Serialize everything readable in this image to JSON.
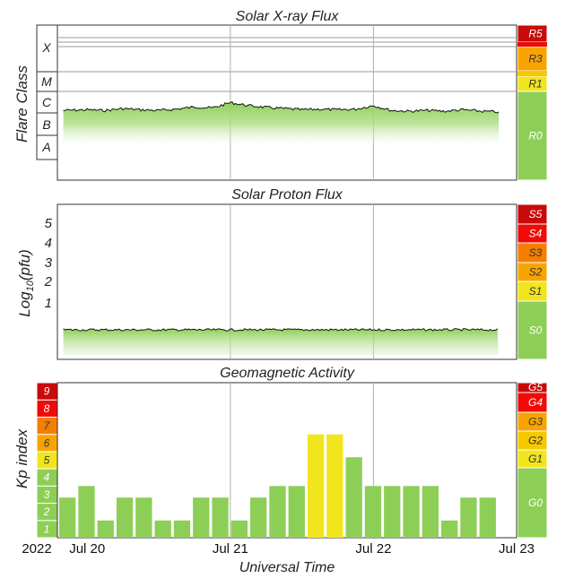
{
  "chart_data": [
    {
      "type": "area",
      "title": "Solar X-ray Flux",
      "ylabel": "Flare Class",
      "y_scale": "log",
      "class_labels": [
        "X",
        "M",
        "C",
        "B",
        "A"
      ],
      "x_ticks": [
        "Jul 20",
        "Jul 21",
        "Jul 22",
        "Jul 23"
      ],
      "x_range": [
        "2022-07-19T19:00",
        "2022-07-23T00:00"
      ],
      "level_scale": [
        "R5",
        "R3",
        "R1",
        "R0"
      ],
      "current_level": "R0",
      "series": [
        {
          "x": [
            "2022-07-19T20:00",
            "2022-07-20T00:00",
            "2022-07-20T03:00",
            "2022-07-20T06:00",
            "2022-07-20T09:00",
            "2022-07-20T12:00",
            "2022-07-20T15:00",
            "2022-07-20T18:00",
            "2022-07-20T21:00",
            "2022-07-21T00:00",
            "2022-07-21T03:00",
            "2022-07-21T06:00",
            "2022-07-21T09:00",
            "2022-07-21T12:00",
            "2022-07-21T15:00",
            "2022-07-21T18:00",
            "2022-07-21T21:00",
            "2022-07-22T00:00",
            "2022-07-22T03:00",
            "2022-07-22T06:00",
            "2022-07-22T09:00",
            "2022-07-22T12:00",
            "2022-07-22T15:00",
            "2022-07-22T18:00",
            "2022-07-22T21:00"
          ],
          "values": [
            "C1.3",
            "C1.4",
            "C1.3",
            "C1.6",
            "C1.4",
            "C1.3",
            "C1.5",
            "C1.9",
            "C1.7",
            "C3.0",
            "C2.2",
            "C1.8",
            "C1.6",
            "C1.4",
            "C1.5",
            "C1.4",
            "C1.5",
            "C2.2",
            "C1.3",
            "C1.2",
            "C1.3",
            "C1.2",
            "C1.4",
            "C1.2",
            "C1.1"
          ]
        }
      ]
    },
    {
      "type": "area",
      "title": "Solar Proton Flux",
      "ylabel": "Log10(pfu)",
      "ylabel_parts": {
        "pre": "Log",
        "sub": "10",
        "post": "(pfu)"
      },
      "y_ticks": [
        "1",
        "2",
        "3",
        "4",
        "5"
      ],
      "x_ticks": [
        "Jul 20",
        "Jul 21",
        "Jul 22",
        "Jul 23"
      ],
      "level_scale": [
        "S5",
        "S4",
        "S3",
        "S2",
        "S1",
        "S0"
      ],
      "current_level": "S0",
      "series": [
        {
          "x": [
            "2022-07-19T20:00",
            "2022-07-20T12:00",
            "2022-07-21T12:00",
            "2022-07-22T12:00",
            "2022-07-22T21:00"
          ],
          "values": [
            -0.6,
            -0.6,
            -0.6,
            -0.6,
            -0.6
          ]
        }
      ]
    },
    {
      "type": "bar",
      "title": "Geomagnetic Activity",
      "ylabel": "Kp index",
      "y_ticks": [
        "1",
        "2",
        "3",
        "4",
        "5",
        "6",
        "7",
        "8",
        "9"
      ],
      "ylim": [
        0,
        9
      ],
      "x_ticks": [
        "Jul 20",
        "Jul 21",
        "Jul 22",
        "Jul 23"
      ],
      "level_scale": [
        "G5",
        "G4",
        "G3",
        "G2",
        "G1",
        "G0"
      ],
      "current_level": "G0",
      "series": [
        {
          "name": "Kp",
          "values": [
            2.33,
            3.0,
            1.0,
            2.33,
            2.33,
            1.0,
            1.0,
            2.33,
            2.33,
            1.0,
            2.33,
            3.0,
            3.0,
            6.0,
            6.0,
            4.67,
            3.0,
            3.0,
            3.0,
            3.0,
            1.0,
            2.33,
            2.33
          ]
        }
      ]
    }
  ],
  "x_axis": {
    "year": "2022",
    "label": "Universal Time",
    "ticks": [
      "Jul 20",
      "Jul 21",
      "Jul 22",
      "Jul 23"
    ]
  },
  "colors": {
    "green": "#8dcf56",
    "yellow": "#f1e51d",
    "gold": "#f6c800",
    "orange": "#f8a400",
    "dark_orange": "#f47e00",
    "red": "#f00a0a",
    "dark_red": "#c80a0a"
  }
}
